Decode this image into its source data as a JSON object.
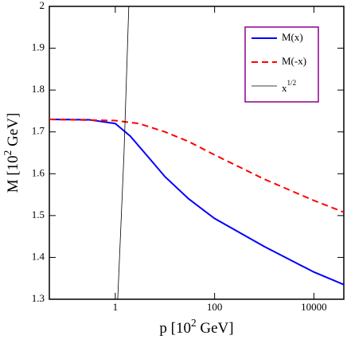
{
  "chart_data": {
    "type": "line",
    "xlabel": "p  [10^{2} GeV]",
    "ylabel": "M  [10^{2} GeV]",
    "xscale": "log",
    "xlim": [
      0.047,
      40000
    ],
    "ylim": [
      1.3,
      2
    ],
    "xticks": [
      1,
      100,
      10000
    ],
    "yticks": [
      1.3,
      1.4,
      1.5,
      1.6,
      1.7,
      1.8,
      1.9,
      2
    ],
    "legend": "upper right",
    "series": [
      {
        "name": "M(x)",
        "color": "#0000ff",
        "dash": "solid",
        "x": [
          0.047,
          0.3,
          1,
          2,
          5,
          10,
          30,
          100,
          1000,
          10000,
          40000
        ],
        "values": [
          1.73,
          1.729,
          1.72,
          1.69,
          1.635,
          1.593,
          1.54,
          1.493,
          1.426,
          1.365,
          1.335
        ]
      },
      {
        "name": "M(-x)",
        "color": "#ff0000",
        "dash": "dashed",
        "x": [
          0.047,
          1,
          3,
          10,
          30,
          100,
          1000,
          10000,
          40000
        ],
        "values": [
          1.73,
          1.727,
          1.72,
          1.7,
          1.677,
          1.645,
          1.587,
          1.536,
          1.508
        ]
      },
      {
        "name": "x^{1/2}",
        "color": "#000000",
        "dash": "thin",
        "x": [
          1.12,
          1.5,
          1.87
        ],
        "values": [
          1.3,
          1.65,
          2
        ]
      }
    ]
  }
}
